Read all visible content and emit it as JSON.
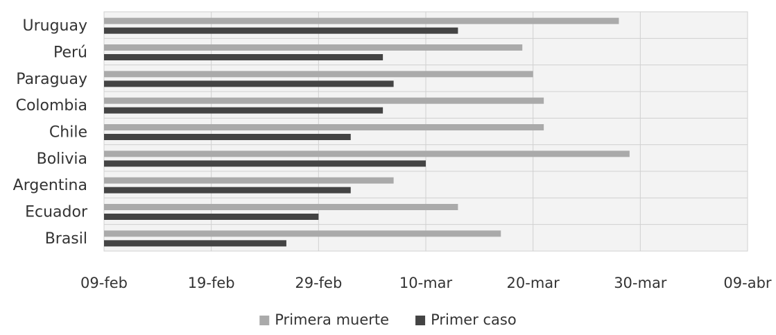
{
  "chart_data": {
    "type": "bar",
    "orientation": "horizontal",
    "title": "",
    "xlabel": "",
    "ylabel": "",
    "categories": [
      "Uruguay",
      "Perú",
      "Paraguay",
      "Colombia",
      "Chile",
      "Bolivia",
      "Argentina",
      "Ecuador",
      "Brasil"
    ],
    "x_is_date": true,
    "xlim": [
      "2020-02-09",
      "2020-04-09"
    ],
    "x_ticks": [
      "2020-02-09",
      "2020-02-19",
      "2020-02-29",
      "2020-03-10",
      "2020-03-20",
      "2020-03-30",
      "2020-04-09"
    ],
    "x_tick_labels": [
      "09-feb",
      "19-feb",
      "29-feb",
      "10-mar",
      "20-mar",
      "30-mar",
      "09-abr"
    ],
    "series": [
      {
        "name": "Primera muerte",
        "color": "#aaaaaa",
        "values": [
          "2020-03-28",
          "2020-03-19",
          "2020-03-20",
          "2020-03-21",
          "2020-03-21",
          "2020-03-29",
          "2020-03-07",
          "2020-03-13",
          "2020-03-17"
        ]
      },
      {
        "name": "Primer caso",
        "color": "#444444",
        "values": [
          "2020-03-13",
          "2020-03-06",
          "2020-03-07",
          "2020-03-06",
          "2020-03-03",
          "2020-03-10",
          "2020-03-03",
          "2020-02-29",
          "2020-02-26"
        ]
      }
    ],
    "grid": true,
    "legend_position": "bottom"
  },
  "colors": {
    "plot_background": "#f3f3f3",
    "grid": "#d0d0d0",
    "text": "#333333"
  }
}
